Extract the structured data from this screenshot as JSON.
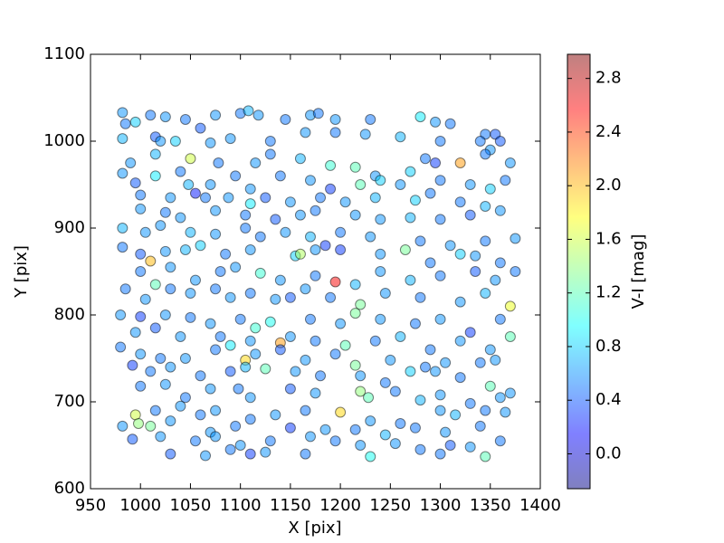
{
  "chart_data": {
    "type": "scatter",
    "x_label": "X [pix]",
    "y_label": "Y [pix]",
    "xlim": [
      950,
      1400
    ],
    "xticks": [
      950,
      1000,
      1050,
      1100,
      1150,
      1200,
      1250,
      1300,
      1350,
      1400
    ],
    "ylim": [
      600,
      1100
    ],
    "yticks": [
      600,
      700,
      800,
      900,
      1000,
      1100
    ],
    "colormap": "jet",
    "alpha": 0.5,
    "edge_color": "#000000",
    "colorbar": {
      "label": "V-I [mag]",
      "lim": [
        -0.26,
        2.98
      ],
      "ticks": [
        {
          "value": 0,
          "label": "0.0"
        },
        0.4,
        0.8,
        1.2,
        1.6,
        {
          "value": 2,
          "label": "2.0"
        },
        2.4,
        2.8
      ]
    },
    "x": [
      982,
      985,
      995,
      1010,
      1025,
      1045,
      1060,
      1075,
      1100,
      1108,
      1118,
      1145,
      1170,
      1178,
      1195,
      1230,
      1280,
      1295,
      1310,
      1345,
      1355,
      982,
      1015,
      1020,
      1035,
      1070,
      1090,
      1130,
      1165,
      1195,
      1225,
      1260,
      1300,
      1340,
      1350,
      1360,
      990,
      1015,
      1050,
      1078,
      1115,
      1130,
      1160,
      1190,
      1215,
      1235,
      1270,
      1285,
      1295,
      1320,
      1345,
      1370,
      982,
      995,
      1015,
      1040,
      1048,
      1070,
      1095,
      1110,
      1140,
      1170,
      1190,
      1220,
      1240,
      1260,
      1300,
      1330,
      1350,
      1365,
      1000,
      1030,
      1055,
      1065,
      1088,
      1110,
      1125,
      1150,
      1180,
      1205,
      1235,
      1275,
      1290,
      1320,
      1345,
      1000,
      1025,
      1040,
      1075,
      1105,
      1135,
      1160,
      1175,
      1215,
      1240,
      1270,
      1300,
      1330,
      1360,
      982,
      1005,
      1020,
      1050,
      1075,
      1105,
      1120,
      1145,
      1170,
      1185,
      1200,
      1230,
      1280,
      1310,
      1345,
      1375,
      982,
      1000,
      1025,
      1045,
      1060,
      1085,
      1110,
      1155,
      1160,
      1175,
      1200,
      1240,
      1265,
      1290,
      1320,
      1335,
      1360,
      1000,
      1010,
      1030,
      1055,
      1080,
      1095,
      1120,
      1140,
      1175,
      1195,
      1215,
      1240,
      1270,
      1300,
      1335,
      1355,
      1375,
      985,
      1005,
      1015,
      1030,
      1050,
      1075,
      1090,
      1110,
      1135,
      1150,
      1165,
      1190,
      1220,
      1245,
      1280,
      1320,
      1345,
      1370,
      980,
      1000,
      1025,
      1050,
      1070,
      1100,
      1115,
      1130,
      1170,
      1200,
      1215,
      1240,
      1275,
      1300,
      1330,
      1360,
      995,
      1015,
      1040,
      1080,
      1090,
      1110,
      1140,
      1150,
      1175,
      1205,
      1235,
      1260,
      1290,
      1320,
      1350,
      1370,
      980,
      1000,
      1020,
      1045,
      1075,
      1105,
      1115,
      1140,
      1165,
      1195,
      1215,
      1250,
      1285,
      1305,
      1340,
      1355,
      992,
      1010,
      1030,
      1060,
      1090,
      1105,
      1125,
      1155,
      1180,
      1220,
      1245,
      1270,
      1295,
      1320,
      1350,
      1370,
      1000,
      1025,
      1045,
      1070,
      1098,
      1110,
      1150,
      1175,
      1220,
      1228,
      1255,
      1280,
      1300,
      1330,
      1360,
      995,
      1015,
      1040,
      1060,
      1075,
      1110,
      1135,
      1165,
      1200,
      1230,
      1260,
      1300,
      1315,
      1345,
      1365,
      982,
      998,
      1010,
      1030,
      1070,
      1095,
      1150,
      1185,
      1215,
      1245,
      1275,
      1305,
      1340,
      992,
      1020,
      1055,
      1075,
      1100,
      1130,
      1170,
      1195,
      1220,
      1255,
      1280,
      1310,
      1330,
      1360,
      1030,
      1065,
      1090,
      1110,
      1125,
      1165,
      1230,
      1300,
      1345
    ],
    "values": [
      1033,
      1020,
      1022,
      1030,
      1028,
      1025,
      1015,
      1030,
      1032,
      1035,
      1030,
      1025,
      1030,
      1032,
      1025,
      1025,
      1028,
      1022,
      1020,
      1008,
      1008,
      1003,
      1005,
      1000,
      1000,
      998,
      1003,
      1000,
      1010,
      1010,
      1008,
      1005,
      1000,
      1000,
      990,
      1000,
      975,
      985,
      980,
      975,
      975,
      985,
      980,
      972,
      970,
      960,
      965,
      980,
      975,
      975,
      985,
      975,
      963,
      952,
      960,
      965,
      950,
      950,
      960,
      945,
      960,
      955,
      945,
      950,
      955,
      950,
      955,
      950,
      945,
      955,
      938,
      935,
      940,
      935,
      935,
      928,
      935,
      930,
      935,
      930,
      935,
      932,
      940,
      930,
      925,
      922,
      918,
      912,
      920,
      915,
      910,
      915,
      920,
      915,
      910,
      912,
      910,
      915,
      920,
      900,
      895,
      903,
      895,
      893,
      900,
      890,
      895,
      890,
      880,
      895,
      890,
      885,
      880,
      885,
      888,
      878,
      870,
      873,
      875,
      880,
      870,
      875,
      868,
      870,
      875,
      875,
      870,
      875,
      860,
      870,
      868,
      860,
      850,
      862,
      855,
      840,
      850,
      855,
      848,
      840,
      845,
      838,
      835,
      850,
      840,
      845,
      850,
      840,
      850,
      830,
      818,
      835,
      830,
      825,
      830,
      820,
      825,
      818,
      820,
      830,
      820,
      812,
      825,
      820,
      815,
      825,
      810,
      800,
      798,
      800,
      797,
      790,
      795,
      785,
      792,
      795,
      790,
      802,
      795,
      790,
      795,
      780,
      795,
      780,
      785,
      775,
      775,
      765,
      770,
      768,
      775,
      770,
      765,
      770,
      775,
      760,
      770,
      760,
      775,
      763,
      755,
      750,
      750,
      760,
      748,
      755,
      760,
      748,
      755,
      742,
      748,
      740,
      745,
      745,
      748,
      742,
      735,
      740,
      730,
      735,
      740,
      738,
      735,
      730,
      730,
      722,
      735,
      735,
      728,
      718,
      710,
      718,
      720,
      705,
      715,
      715,
      705,
      715,
      710,
      712,
      705,
      712,
      702,
      708,
      698,
      705,
      685,
      690,
      695,
      685,
      690,
      680,
      685,
      690,
      688,
      678,
      675,
      690,
      685,
      690,
      688,
      672,
      675,
      672,
      678,
      665,
      672,
      670,
      668,
      668,
      662,
      670,
      665,
      672,
      657,
      660,
      655,
      660,
      650,
      655,
      660,
      655,
      650,
      652,
      645,
      650,
      648,
      655,
      640,
      638,
      645,
      640,
      642,
      640,
      637,
      640,
      637
    ],
    "c": [
      0.6,
      0.5,
      0.8,
      0.5,
      0.6,
      0.5,
      0.4,
      0.6,
      0.5,
      0.7,
      0.6,
      0.5,
      0.6,
      0.5,
      0.6,
      0.5,
      0.9,
      0.6,
      0.5,
      0.5,
      0.4,
      0.7,
      0.4,
      0.6,
      0.8,
      0.6,
      0.6,
      0.5,
      0.6,
      0.5,
      0.6,
      0.7,
      0.5,
      0.5,
      0.6,
      0.4,
      0.6,
      0.7,
      1.6,
      0.5,
      0.6,
      0.5,
      0.7,
      1.1,
      1.2,
      0.6,
      0.8,
      0.5,
      0.3,
      2.1,
      0.5,
      0.6,
      0.6,
      0.4,
      0.9,
      0.5,
      0.7,
      0.6,
      0.5,
      0.6,
      0.5,
      0.6,
      0.3,
      1.2,
      0.8,
      0.6,
      0.5,
      0.6,
      0.8,
      0.5,
      0.5,
      0.6,
      0.2,
      0.5,
      0.6,
      0.9,
      0.4,
      0.6,
      0.5,
      0.6,
      0.7,
      0.8,
      0.5,
      0.5,
      0.7,
      0.6,
      0.5,
      0.6,
      0.6,
      0.5,
      0.4,
      0.6,
      0.5,
      0.6,
      0.6,
      0.7,
      0.5,
      0.4,
      0.6,
      0.7,
      0.6,
      0.6,
      0.7,
      0.6,
      0.5,
      0.5,
      0.6,
      0.7,
      0.3,
      0.5,
      0.6,
      0.5,
      0.6,
      0.5,
      0.6,
      0.5,
      0.4,
      0.6,
      0.7,
      0.8,
      0.5,
      0.6,
      0.8,
      1.5,
      0.6,
      0.3,
      0.6,
      1.3,
      0.5,
      0.8,
      0.6,
      0.5,
      0.5,
      2.0,
      0.6,
      0.6,
      0.5,
      0.6,
      1.1,
      0.6,
      0.5,
      2.6,
      0.7,
      0.6,
      0.7,
      0.5,
      0.4,
      0.6,
      0.5,
      0.5,
      0.6,
      1.2,
      0.5,
      0.6,
      0.5,
      0.6,
      0.5,
      0.6,
      0.4,
      0.6,
      0.5,
      1.3,
      0.6,
      0.5,
      0.6,
      0.7,
      1.7,
      0.6,
      0.3,
      0.6,
      0.5,
      0.6,
      0.5,
      1.1,
      1.0,
      0.5,
      0.6,
      1.3,
      0.6,
      0.5,
      0.6,
      0.3,
      0.5,
      0.6,
      0.4,
      0.6,
      0.5,
      0.9,
      0.6,
      2.1,
      0.6,
      0.5,
      1.2,
      0.5,
      0.7,
      0.5,
      0.6,
      0.6,
      1.2,
      0.5,
      0.6,
      0.5,
      0.6,
      0.5,
      1.9,
      0.6,
      0.4,
      0.6,
      0.5,
      1.3,
      0.6,
      0.5,
      0.6,
      0.5,
      0.6,
      0.3,
      0.5,
      0.6,
      0.5,
      0.4,
      0.7,
      1.2,
      0.6,
      0.5,
      0.6,
      0.5,
      0.8,
      0.6,
      0.5,
      1.2,
      0.6,
      0.5,
      0.6,
      0.5,
      0.6,
      0.5,
      0.6,
      0.4,
      0.6,
      1.4,
      1.2,
      0.5,
      0.7,
      0.6,
      0.5,
      0.6,
      1.6,
      0.5,
      0.6,
      0.5,
      0.6,
      0.5,
      0.6,
      0.5,
      1.9,
      0.6,
      0.5,
      0.6,
      0.7,
      0.5,
      0.6,
      0.6,
      1.4,
      1.3,
      0.6,
      0.6,
      0.5,
      0.3,
      0.6,
      0.5,
      0.7,
      0.5,
      0.6,
      0.5,
      0.4,
      0.6,
      0.5,
      0.6,
      0.6,
      0.5,
      0.6,
      0.5,
      0.6,
      0.6,
      0.5,
      0.4,
      0.6,
      0.5,
      0.4,
      0.6,
      0.5,
      0.3,
      0.6,
      0.5,
      1.0,
      0.5,
      1.2
    ]
  }
}
